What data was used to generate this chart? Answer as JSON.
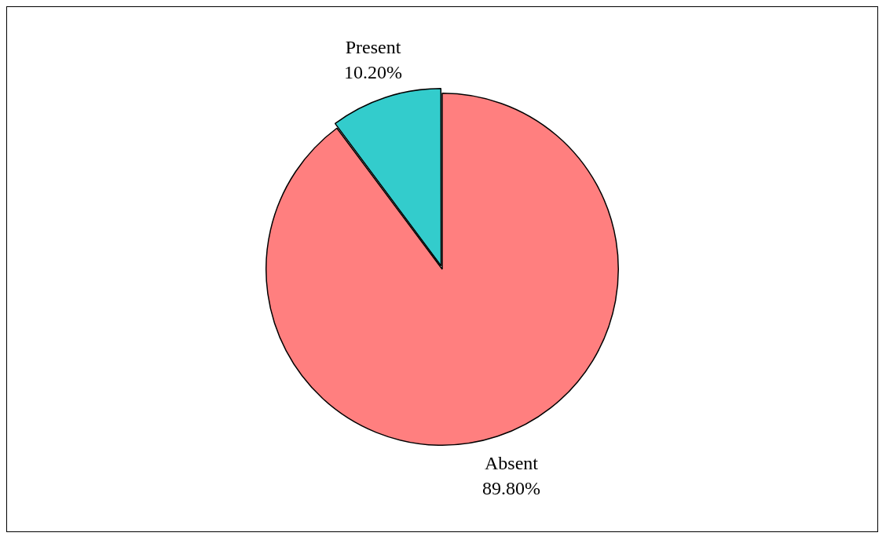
{
  "chart_data": {
    "type": "pie",
    "categories": [
      "Absent",
      "Present"
    ],
    "values": [
      89.8,
      10.2
    ],
    "colors": [
      "#ff7f7f",
      "#33cccc"
    ],
    "value_labels": [
      "89.80%",
      "10.20%"
    ]
  }
}
